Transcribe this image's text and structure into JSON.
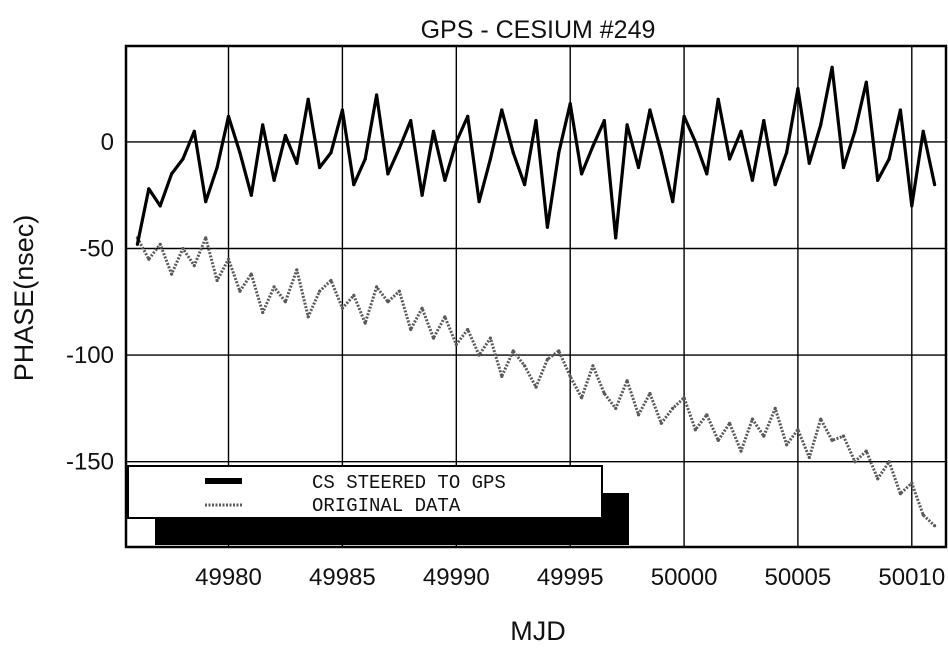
{
  "chart_data": {
    "type": "line",
    "title": "GPS - CESIUM #249",
    "xlabel": "MJD",
    "ylabel": "PHASE(nsec)",
    "xlim": [
      49975.5,
      50011.5
    ],
    "ylim": [
      -190,
      45
    ],
    "xticks": [
      49980,
      49985,
      49990,
      49995,
      50000,
      50005,
      50010
    ],
    "yticks": [
      0,
      -50,
      -100,
      -150
    ],
    "grid": true,
    "legend_position": "bottom-left",
    "series": [
      {
        "name": "CS STEERED TO GPS",
        "color": "#000000",
        "style": "solid",
        "x": [
          49976.0,
          49976.5,
          49977.0,
          49977.5,
          49978.0,
          49978.5,
          49979.0,
          49979.5,
          49980.0,
          49980.5,
          49981.0,
          49981.5,
          49982.0,
          49982.5,
          49983.0,
          49983.5,
          49984.0,
          49984.5,
          49985.0,
          49985.5,
          49986.0,
          49986.5,
          49987.0,
          49987.5,
          49988.0,
          49988.5,
          49989.0,
          49989.5,
          49990.0,
          49990.5,
          49991.0,
          49991.5,
          49992.0,
          49992.5,
          49993.0,
          49993.5,
          49994.0,
          49994.5,
          49995.0,
          49995.5,
          49996.0,
          49996.5,
          49997.0,
          49997.5,
          49998.0,
          49998.5,
          49999.0,
          49999.5,
          50000.0,
          50000.5,
          50001.0,
          50001.5,
          50002.0,
          50002.5,
          50003.0,
          50003.5,
          50004.0,
          50004.5,
          50005.0,
          50005.5,
          50006.0,
          50006.5,
          50007.0,
          50007.5,
          50008.0,
          50008.5,
          50009.0,
          50009.5,
          50010.0,
          50010.5,
          50011.0
        ],
        "y": [
          -48,
          -22,
          -30,
          -15,
          -8,
          5,
          -28,
          -12,
          12,
          -5,
          -25,
          8,
          -18,
          3,
          -10,
          20,
          -12,
          -5,
          15,
          -20,
          -8,
          22,
          -15,
          -3,
          10,
          -25,
          5,
          -18,
          0,
          12,
          -28,
          -8,
          15,
          -5,
          -20,
          10,
          -40,
          -5,
          18,
          -15,
          -2,
          10,
          -45,
          8,
          -12,
          15,
          -5,
          -28,
          12,
          0,
          -15,
          20,
          -8,
          5,
          -18,
          10,
          -20,
          -5,
          25,
          -10,
          8,
          35,
          -12,
          5,
          28,
          -18,
          -8,
          15,
          -30,
          5,
          -20
        ]
      },
      {
        "name": "ORIGINAL DATA",
        "color": "#5a5a5a",
        "style": "dotted",
        "x": [
          49976.0,
          49976.5,
          49977.0,
          49977.5,
          49978.0,
          49978.5,
          49979.0,
          49979.5,
          49980.0,
          49980.5,
          49981.0,
          49981.5,
          49982.0,
          49982.5,
          49983.0,
          49983.5,
          49984.0,
          49984.5,
          49985.0,
          49985.5,
          49986.0,
          49986.5,
          49987.0,
          49987.5,
          49988.0,
          49988.5,
          49989.0,
          49989.5,
          49990.0,
          49990.5,
          49991.0,
          49991.5,
          49992.0,
          49992.5,
          49993.0,
          49993.5,
          49994.0,
          49994.5,
          49995.0,
          49995.5,
          49996.0,
          49996.5,
          49997.0,
          49997.5,
          49998.0,
          49998.5,
          49999.0,
          49999.5,
          50000.0,
          50000.5,
          50001.0,
          50001.5,
          50002.0,
          50002.5,
          50003.0,
          50003.5,
          50004.0,
          50004.5,
          50005.0,
          50005.5,
          50006.0,
          50006.5,
          50007.0,
          50007.5,
          50008.0,
          50008.5,
          50009.0,
          50009.5,
          50010.0,
          50010.5,
          50011.0
        ],
        "y": [
          -45,
          -55,
          -48,
          -62,
          -50,
          -58,
          -45,
          -65,
          -55,
          -70,
          -62,
          -80,
          -68,
          -75,
          -60,
          -82,
          -70,
          -65,
          -78,
          -72,
          -85,
          -68,
          -75,
          -70,
          -88,
          -78,
          -92,
          -82,
          -95,
          -88,
          -100,
          -92,
          -110,
          -98,
          -105,
          -115,
          -102,
          -98,
          -110,
          -120,
          -105,
          -118,
          -125,
          -112,
          -128,
          -118,
          -132,
          -125,
          -120,
          -135,
          -128,
          -140,
          -132,
          -145,
          -130,
          -138,
          -125,
          -142,
          -135,
          -148,
          -130,
          -140,
          -138,
          -150,
          -145,
          -158,
          -150,
          -165,
          -160,
          -175,
          -180
        ]
      }
    ]
  }
}
